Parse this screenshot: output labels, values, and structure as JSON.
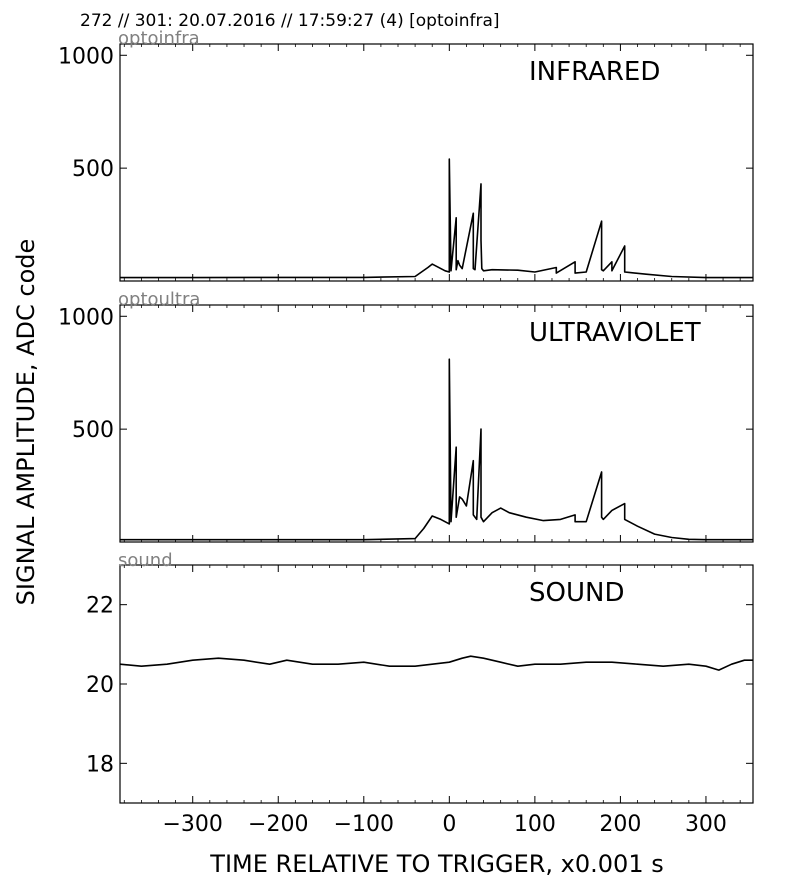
{
  "header": "272 // 301:   20.07.2016 // 17:59:27 (4)  [optoinfra]",
  "ylabel": "SIGNAL AMPLITUDE,  ADC code",
  "xlabel": "TIME RELATIVE TO TRIGGER,   x0.001 s",
  "chart_data": [
    {
      "type": "line",
      "channel": "optoinfra",
      "label": "INFRARED",
      "xlim": [
        -385,
        355
      ],
      "ylim": [
        0,
        1050
      ],
      "yticks": [
        1000,
        500
      ],
      "yticklabels": [
        "1000",
        "500"
      ],
      "x": [
        -385,
        -300,
        -200,
        -100,
        -40,
        -25,
        -20,
        -15,
        -10,
        -5,
        0,
        0,
        2,
        8,
        8,
        10,
        12,
        15,
        28,
        28,
        30,
        37,
        37,
        38,
        40,
        50,
        80,
        100,
        125,
        125,
        147,
        147,
        160,
        178,
        178,
        180,
        190,
        190,
        205,
        205,
        210,
        230,
        260,
        300,
        355
      ],
      "values": [
        15,
        15,
        16,
        16,
        20,
        60,
        75,
        65,
        55,
        45,
        40,
        540,
        45,
        280,
        50,
        90,
        70,
        55,
        300,
        55,
        50,
        430,
        180,
        55,
        45,
        50,
        48,
        40,
        60,
        35,
        85,
        35,
        40,
        265,
        50,
        45,
        85,
        45,
        155,
        40,
        38,
        30,
        20,
        15,
        15
      ]
    },
    {
      "type": "line",
      "channel": "optoultra",
      "label": "ULTRAVIOLET",
      "xlim": [
        -385,
        355
      ],
      "ylim": [
        0,
        1050
      ],
      "yticks": [
        1000,
        500
      ],
      "yticklabels": [
        "1000",
        "500"
      ],
      "x": [
        -385,
        -300,
        -200,
        -100,
        -40,
        -30,
        -20,
        -10,
        0,
        0,
        2,
        8,
        8,
        12,
        15,
        20,
        28,
        28,
        32,
        37,
        37,
        40,
        50,
        60,
        70,
        90,
        110,
        130,
        147,
        147,
        160,
        178,
        178,
        180,
        190,
        205,
        205,
        220,
        240,
        260,
        280,
        300,
        355
      ],
      "values": [
        10,
        10,
        10,
        10,
        15,
        60,
        115,
        100,
        80,
        810,
        90,
        420,
        110,
        200,
        190,
        160,
        360,
        120,
        100,
        500,
        110,
        90,
        130,
        150,
        130,
        110,
        95,
        100,
        120,
        90,
        90,
        310,
        110,
        100,
        140,
        170,
        100,
        70,
        35,
        20,
        12,
        10,
        10
      ]
    },
    {
      "type": "line",
      "channel": "sound",
      "label": "SOUND",
      "xlim": [
        -385,
        355
      ],
      "ylim": [
        17,
        23
      ],
      "yticks": [
        22,
        20,
        18
      ],
      "yticklabels": [
        "22",
        "20",
        "18"
      ],
      "x": [
        -385,
        -360,
        -330,
        -300,
        -270,
        -240,
        -210,
        -190,
        -160,
        -130,
        -100,
        -70,
        -40,
        -20,
        0,
        15,
        25,
        40,
        60,
        80,
        100,
        130,
        160,
        190,
        220,
        250,
        280,
        300,
        315,
        330,
        345,
        355
      ],
      "values": [
        20.5,
        20.45,
        20.5,
        20.6,
        20.65,
        20.6,
        20.5,
        20.6,
        20.5,
        20.5,
        20.55,
        20.45,
        20.45,
        20.5,
        20.55,
        20.65,
        20.7,
        20.65,
        20.55,
        20.45,
        20.5,
        20.5,
        20.55,
        20.55,
        20.5,
        20.45,
        20.5,
        20.45,
        20.35,
        20.5,
        20.6,
        20.6
      ]
    }
  ],
  "xticks": [
    -300,
    -200,
    -100,
    0,
    100,
    200,
    300
  ],
  "xticklabels": [
    "−300",
    "−200",
    "−100",
    "0",
    "100",
    "200",
    "300"
  ]
}
